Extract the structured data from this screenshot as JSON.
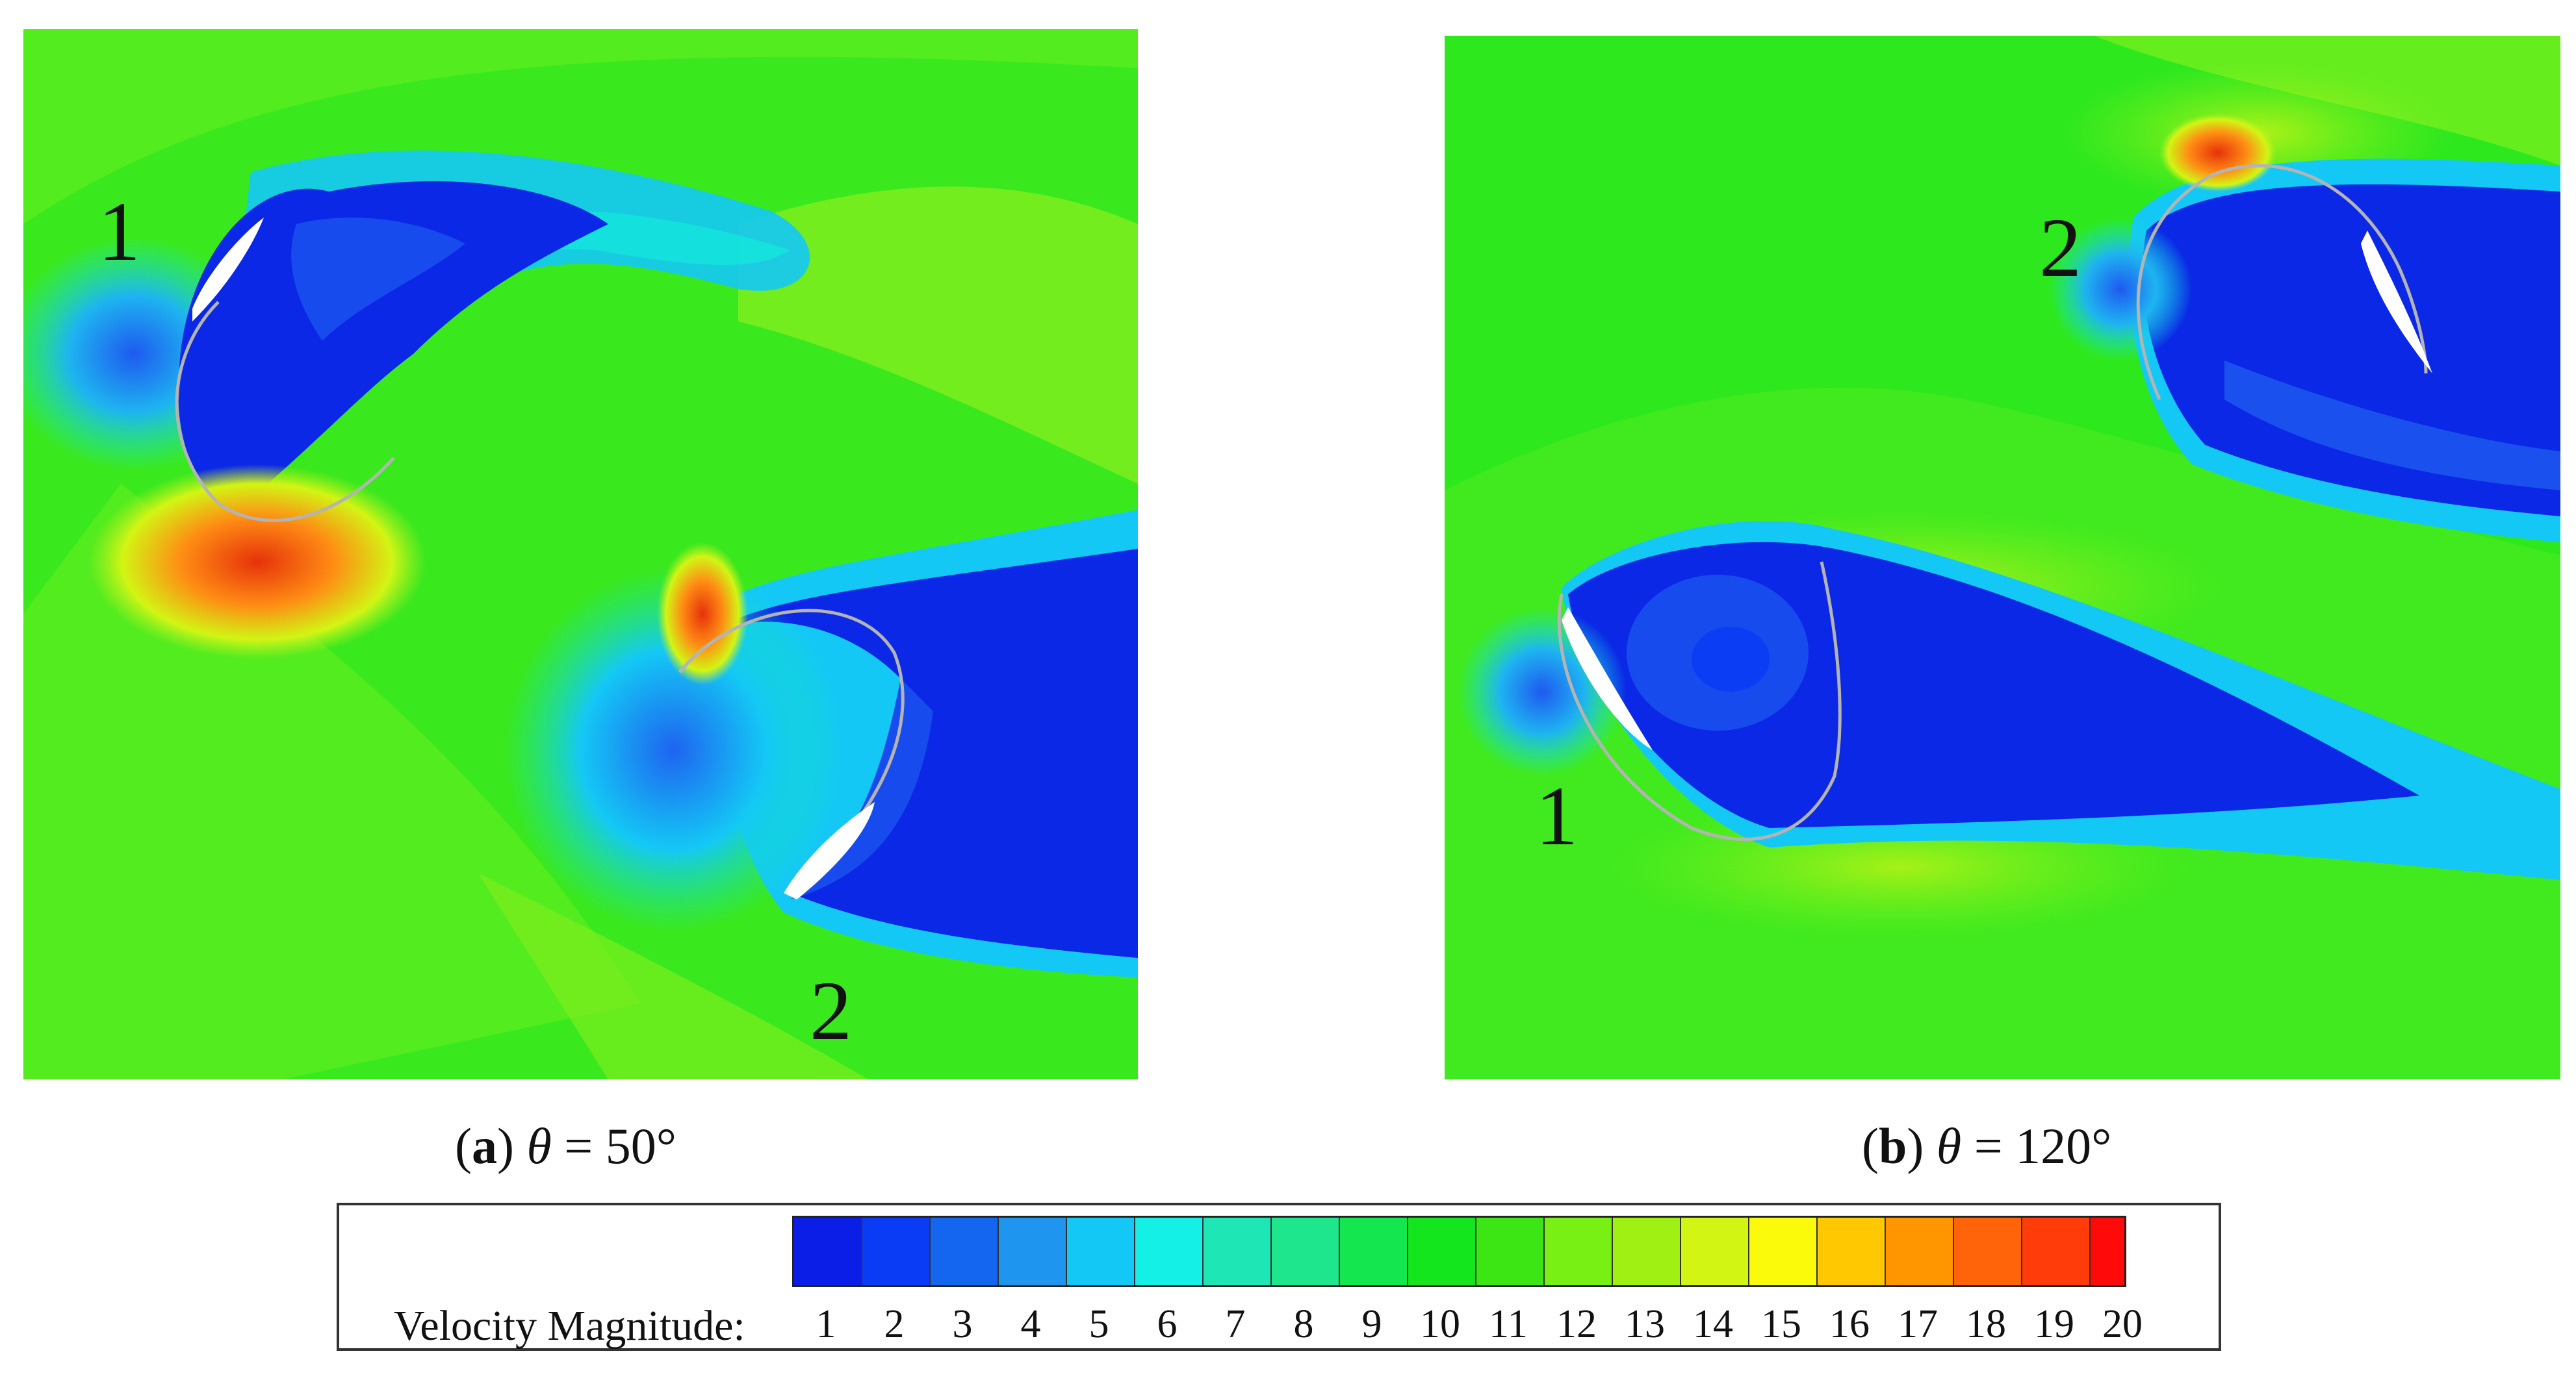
{
  "panels": [
    {
      "id": "a",
      "caption_letter": "a",
      "caption_symbol": "θ",
      "caption_value": " = 50°",
      "blade_labels": [
        "1",
        "2"
      ]
    },
    {
      "id": "b",
      "caption_letter": "b",
      "caption_symbol": "θ",
      "caption_value": " = 120°",
      "blade_labels": [
        "1",
        "2"
      ]
    }
  ],
  "legend": {
    "title": "Velocity Magnitude:",
    "ticks": [
      "1",
      "2",
      "3",
      "4",
      "5",
      "6",
      "7",
      "8",
      "9",
      "10",
      "11",
      "12",
      "13",
      "14",
      "15",
      "16",
      "17",
      "18",
      "19",
      "20"
    ],
    "colors": [
      "#0a1ee8",
      "#0a3cf5",
      "#1466f0",
      "#1e96f0",
      "#14c8f5",
      "#14f0e6",
      "#1ee6b4",
      "#1ee68c",
      "#14e650",
      "#14e61e",
      "#3ce614",
      "#78f014",
      "#a0f014",
      "#d2f514",
      "#fafa0a",
      "#ffc800",
      "#ff9600",
      "#ff640a",
      "#ff3c0a",
      "#ff0a0a"
    ],
    "field_colors": {
      "background_green": "#3ae81e",
      "light_green": "#74f020",
      "yellow_green": "#b8f020",
      "cyan": "#14e6dc",
      "wake_blue": "#0a28e6",
      "mid_blue": "#1e5af0",
      "orange": "#ff8c14",
      "red": "#f03c14"
    }
  }
}
